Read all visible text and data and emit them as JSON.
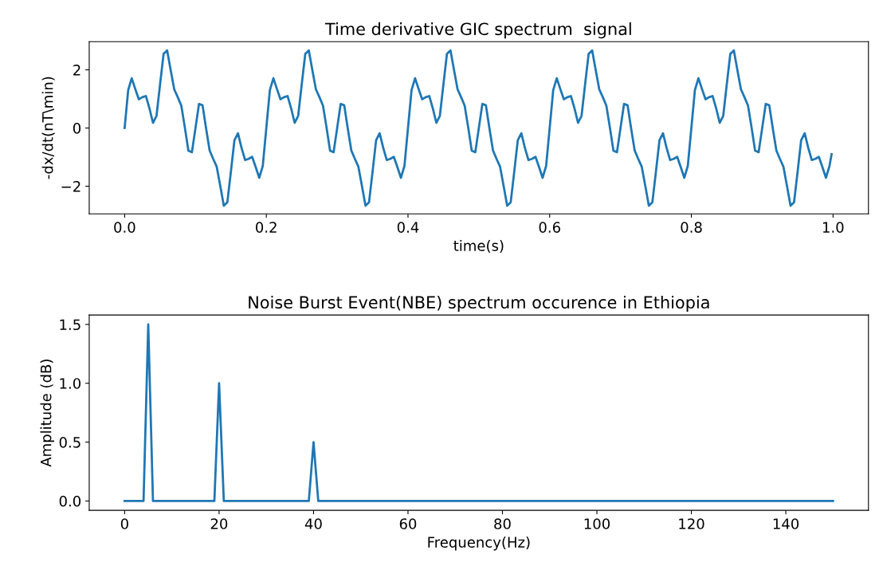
{
  "chart_data": [
    {
      "type": "line",
      "title": "Time derivative GIC spectrum  signal",
      "xlabel": "time(s)",
      "ylabel": "-dx/dt(nT\\min)",
      "x": [
        0,
        0.005,
        0.01,
        0.015,
        0.02,
        0.025,
        0.03,
        0.035,
        0.04,
        0.045,
        0.05,
        0.055,
        0.06,
        0.065,
        0.07,
        0.075,
        0.08,
        0.085,
        0.09,
        0.095,
        0.1,
        0.105,
        0.11,
        0.115,
        0.12,
        0.125,
        0.13,
        0.135,
        0.14,
        0.145,
        0.15,
        0.155,
        0.16,
        0.165,
        0.17,
        0.175,
        0.18,
        0.185,
        0.19,
        0.195,
        0.2,
        0.205,
        0.21,
        0.215,
        0.22,
        0.225,
        0.23,
        0.235,
        0.24,
        0.245,
        0.25,
        0.255,
        0.26,
        0.265,
        0.27,
        0.275,
        0.28,
        0.285,
        0.29,
        0.295,
        0.3,
        0.305,
        0.31,
        0.315,
        0.32,
        0.325,
        0.33,
        0.335,
        0.34,
        0.345,
        0.35,
        0.355,
        0.36,
        0.365,
        0.37,
        0.375,
        0.38,
        0.385,
        0.39,
        0.395,
        0.4,
        0.405,
        0.41,
        0.415,
        0.42,
        0.425,
        0.43,
        0.435,
        0.44,
        0.445,
        0.45,
        0.455,
        0.46,
        0.465,
        0.47,
        0.475,
        0.48,
        0.485,
        0.49,
        0.495,
        0.5,
        0.505,
        0.51,
        0.515,
        0.52,
        0.525,
        0.53,
        0.535,
        0.54,
        0.545,
        0.55,
        0.555,
        0.56,
        0.565,
        0.57,
        0.575,
        0.58,
        0.585,
        0.59,
        0.595,
        0.6,
        0.605,
        0.61,
        0.615,
        0.62,
        0.625,
        0.63,
        0.635,
        0.64,
        0.645,
        0.65,
        0.655,
        0.66,
        0.665,
        0.67,
        0.675,
        0.68,
        0.685,
        0.69,
        0.695,
        0.7,
        0.705,
        0.71,
        0.715,
        0.72,
        0.725,
        0.73,
        0.735,
        0.74,
        0.745,
        0.75,
        0.755,
        0.76,
        0.765,
        0.77,
        0.775,
        0.78,
        0.785,
        0.79,
        0.795,
        0.8,
        0.805,
        0.81,
        0.815,
        0.82,
        0.825,
        0.83,
        0.835,
        0.84,
        0.845,
        0.85,
        0.855,
        0.86,
        0.865,
        0.87,
        0.875,
        0.88,
        0.885,
        0.89,
        0.895,
        0.9,
        0.905,
        0.91,
        0.915,
        0.92,
        0.925,
        0.93,
        0.935,
        0.94,
        0.945,
        0.95,
        0.955,
        0.96,
        0.965,
        0.97,
        0.975,
        0.98,
        0.985,
        0.99,
        0.995,
        0.998
      ],
      "series": [
        {
          "color": "#1f77b4",
          "values": [
            0,
            1.3,
            1.71,
            1.34,
            0.99,
            1.06,
            1.1,
            0.68,
            0.18,
            0.42,
            1.5,
            2.55,
            2.67,
            1.99,
            1.33,
            1.06,
            0.77,
            0.02,
            -0.78,
            -0.83,
            0,
            0.83,
            0.78,
            -0.02,
            -0.77,
            -1.06,
            -1.33,
            -1.99,
            -2.67,
            -2.55,
            -1.5,
            -0.42,
            -0.18,
            -0.68,
            -1.1,
            -1.06,
            -0.99,
            -1.34,
            -1.71,
            -1.3,
            0,
            1.3,
            1.71,
            1.34,
            0.99,
            1.06,
            1.1,
            0.68,
            0.18,
            0.42,
            1.5,
            2.55,
            2.67,
            1.99,
            1.33,
            1.06,
            0.77,
            0.02,
            -0.78,
            -0.83,
            0,
            0.83,
            0.78,
            -0.02,
            -0.77,
            -1.06,
            -1.33,
            -1.99,
            -2.67,
            -2.55,
            -1.5,
            -0.42,
            -0.18,
            -0.68,
            -1.1,
            -1.06,
            -0.99,
            -1.34,
            -1.71,
            -1.3,
            0,
            1.3,
            1.71,
            1.34,
            0.99,
            1.06,
            1.1,
            0.68,
            0.18,
            0.42,
            1.5,
            2.55,
            2.67,
            1.99,
            1.33,
            1.06,
            0.77,
            0.02,
            -0.78,
            -0.83,
            0,
            0.83,
            0.78,
            -0.02,
            -0.77,
            -1.06,
            -1.33,
            -1.99,
            -2.67,
            -2.55,
            -1.5,
            -0.42,
            -0.18,
            -0.68,
            -1.1,
            -1.06,
            -0.99,
            -1.34,
            -1.71,
            -1.3,
            0,
            1.3,
            1.71,
            1.34,
            0.99,
            1.06,
            1.1,
            0.68,
            0.18,
            0.42,
            1.5,
            2.55,
            2.67,
            1.99,
            1.33,
            1.06,
            0.77,
            0.02,
            -0.78,
            -0.83,
            0,
            0.83,
            0.78,
            -0.02,
            -0.77,
            -1.06,
            -1.33,
            -1.99,
            -2.67,
            -2.55,
            -1.5,
            -0.42,
            -0.18,
            -0.68,
            -1.1,
            -1.06,
            -0.99,
            -1.34,
            -1.71,
            -1.3,
            0,
            1.3,
            1.71,
            1.34,
            0.99,
            1.06,
            1.1,
            0.68,
            0.18,
            0.42,
            1.5,
            2.55,
            2.67,
            1.99,
            1.33,
            1.06,
            0.77,
            0.02,
            -0.78,
            -0.83,
            0,
            0.83,
            0.78,
            -0.02,
            -0.77,
            -1.06,
            -1.33,
            -1.99,
            -2.67,
            -2.55,
            -1.5,
            -0.42,
            -0.18,
            -0.68,
            -1.1,
            -1.06,
            -0.99,
            -1.34,
            -1.71,
            -1.3,
            -0.9
          ]
        }
      ],
      "xlim": [
        -0.05,
        1.05
      ],
      "xticks": [
        {
          "value": 0,
          "label": "0.0"
        },
        {
          "value": 0.2,
          "label": "0.2"
        },
        {
          "value": 0.4,
          "label": "0.4"
        },
        {
          "value": 0.6,
          "label": "0.6"
        },
        {
          "value": 0.8,
          "label": "0.8"
        },
        {
          "value": 1,
          "label": "1.0"
        }
      ],
      "ylim": [
        -2.95,
        2.97
      ],
      "yticks": [
        {
          "value": -2,
          "label": "−2"
        },
        0,
        2
      ],
      "grid": false,
      "legend": false
    },
    {
      "type": "line",
      "title": "Noise Burst Event(NBE) spectrum occurence in Ethiopia",
      "xlabel": "Frequency(Hz)",
      "ylabel": "Amplitude (dB)",
      "x": [
        0,
        4,
        5,
        6,
        19,
        20,
        21,
        39,
        40,
        41,
        150
      ],
      "series": [
        {
          "color": "#1f77b4",
          "values": [
            0,
            0,
            1.5,
            0,
            0,
            1,
            0,
            0,
            0.5,
            0,
            0
          ]
        }
      ],
      "xlim": [
        -7.5,
        157.5
      ],
      "xticks": [
        0,
        20,
        40,
        60,
        80,
        100,
        120,
        140
      ],
      "ylim": [
        -0.08,
        1.58
      ],
      "yticks": [
        {
          "value": 0,
          "label": "0.0"
        },
        {
          "value": 0.5,
          "label": "0.5"
        },
        {
          "value": 1,
          "label": "1.0"
        },
        {
          "value": 1.5,
          "label": "1.5"
        }
      ],
      "grid": false,
      "legend": false
    }
  ]
}
